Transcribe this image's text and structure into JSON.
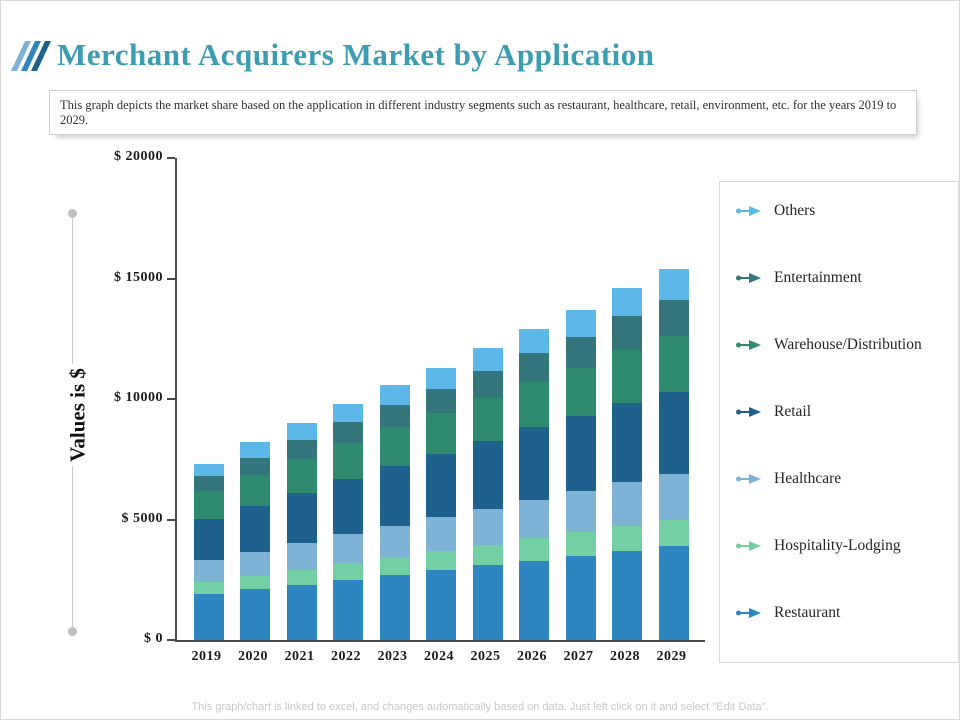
{
  "header": {
    "title": "Merchant Acquirers Market by Application"
  },
  "description": "This graph depicts the market share based on the application in different industry segments such as restaurant, healthcare, retail, environment, etc. for the years 2019 to 2029.",
  "chart_data": {
    "type": "bar",
    "stacked": true,
    "title": "Merchant Acquirers Market by Application",
    "xlabel": "",
    "ylabel": "Values is $",
    "ylim": [
      0,
      20000
    ],
    "grid": false,
    "legend_position": "right",
    "categories": [
      "2019",
      "2020",
      "2021",
      "2022",
      "2023",
      "2024",
      "2025",
      "2026",
      "2027",
      "2028",
      "2029"
    ],
    "yticks": [
      {
        "value": 0,
        "label": "$ 0"
      },
      {
        "value": 5000,
        "label": "$ 5000"
      },
      {
        "value": 10000,
        "label": "$ 10000"
      },
      {
        "value": 15000,
        "label": "$ 15000"
      },
      {
        "value": 20000,
        "label": "$ 20000"
      }
    ],
    "series": [
      {
        "name": "Restaurant",
        "color": "#2e86c1",
        "values": [
          1900,
          2100,
          2300,
          2500,
          2700,
          2900,
          3100,
          3300,
          3500,
          3700,
          3900
        ]
      },
      {
        "name": "Hospitality-Lodging",
        "color": "#73d0a4",
        "values": [
          500,
          560,
          620,
          680,
          740,
          800,
          860,
          920,
          980,
          1040,
          1100
        ]
      },
      {
        "name": "Healthcare",
        "color": "#7fb3d5",
        "values": [
          900,
          1000,
          1100,
          1200,
          1300,
          1400,
          1500,
          1600,
          1700,
          1800,
          1900
        ]
      },
      {
        "name": "Retail",
        "color": "#1f618d",
        "values": [
          1700,
          1900,
          2100,
          2300,
          2500,
          2600,
          2800,
          3000,
          3100,
          3300,
          3400
        ]
      },
      {
        "name": "Warehouse/Distribution",
        "color": "#2e8b6f",
        "values": [
          1200,
          1300,
          1400,
          1500,
          1600,
          1700,
          1800,
          1900,
          2000,
          2200,
          2300
        ]
      },
      {
        "name": "Entertainment",
        "color": "#35767c",
        "values": [
          600,
          700,
          800,
          850,
          900,
          1000,
          1100,
          1200,
          1300,
          1400,
          1500
        ]
      },
      {
        "name": "Others",
        "color": "#5bb8e8",
        "values": [
          500,
          640,
          680,
          770,
          860,
          900,
          940,
          980,
          1120,
          1160,
          1300
        ]
      }
    ],
    "legend_order_top_to_bottom": [
      "Others",
      "Entertainment",
      "Warehouse/Distribution",
      "Retail",
      "Healthcare",
      "Hospitality-Lodging",
      "Restaurant"
    ]
  },
  "footer": {
    "note": "This graph/chart is linked to excel, and changes automatically based on data. Just left click on it and select \"Edit Data\"."
  },
  "colors": {
    "title": "#3a9db3",
    "axis": "#4a4a4a"
  }
}
